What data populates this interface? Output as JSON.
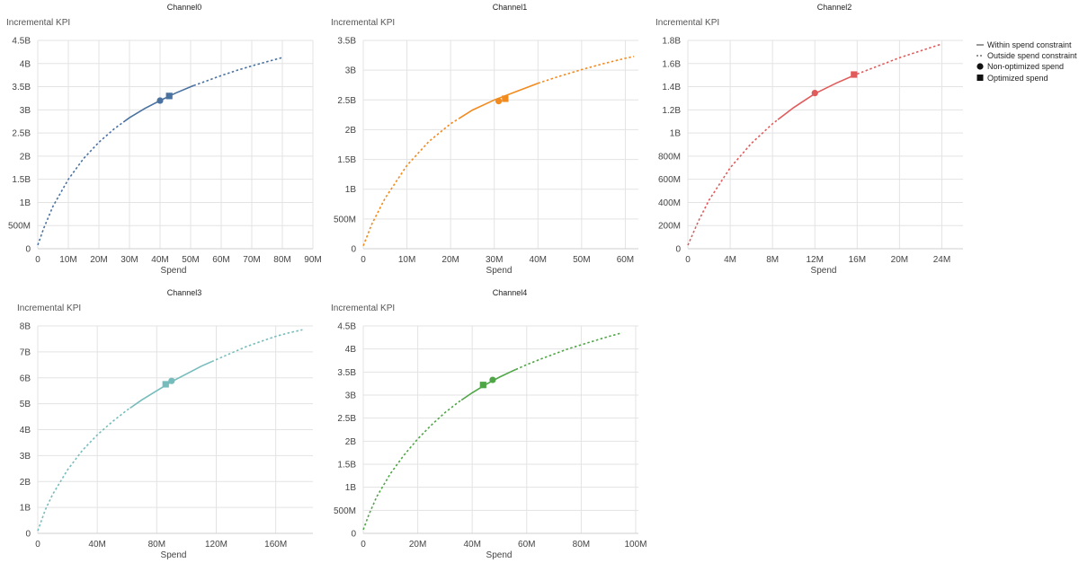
{
  "legend": {
    "within": "Within spend constraint",
    "outside": "Outside spend constraint",
    "non_optimized": "Non-optimized spend",
    "optimized": "Optimized spend"
  },
  "chart_data": [
    {
      "type": "line",
      "title": "Channel0",
      "ylabel": "Incremental KPI",
      "xlabel": "Spend",
      "color": "#4a72a0",
      "xlim": [
        0,
        90000000
      ],
      "ylim": [
        0,
        4500000000
      ],
      "xticks": [
        0,
        10000000,
        20000000,
        30000000,
        40000000,
        50000000,
        60000000,
        70000000,
        80000000,
        90000000
      ],
      "xtick_labels": [
        "0",
        "10M",
        "20M",
        "30M",
        "40M",
        "50M",
        "60M",
        "70M",
        "80M",
        "90M"
      ],
      "yticks": [
        0,
        500000000,
        1000000000,
        1500000000,
        2000000000,
        2500000000,
        3000000000,
        3500000000,
        4000000000,
        4500000000
      ],
      "ytick_labels": [
        "0",
        "500M",
        "1B",
        "1.5B",
        "2B",
        "2.5B",
        "3B",
        "3.5B",
        "4B",
        "4.5B"
      ],
      "curve": {
        "x": [
          0,
          2000000,
          5000000,
          10000000,
          15000000,
          20000000,
          25000000,
          30000000,
          35000000,
          40000000,
          45000000,
          50000000,
          55000000,
          60000000,
          65000000,
          70000000,
          75000000,
          80000000
        ],
        "y": [
          80000000,
          450000000,
          920000000,
          1500000000,
          1950000000,
          2300000000,
          2590000000,
          2830000000,
          3030000000,
          3200000000,
          3360000000,
          3500000000,
          3620000000,
          3740000000,
          3850000000,
          3950000000,
          4040000000,
          4130000000
        ]
      },
      "within_range": [
        28000000,
        51000000
      ],
      "non_optimized": {
        "x": 40000000,
        "y": 3200000000
      },
      "optimized": {
        "x": 43000000,
        "y": 3300000000
      }
    },
    {
      "type": "line",
      "title": "Channel1",
      "ylabel": "Incremental KPI",
      "xlabel": "Spend",
      "color": "#f28a1e",
      "xlim": [
        0,
        63000000
      ],
      "ylim": [
        0,
        3500000000
      ],
      "xticks": [
        0,
        10000000,
        20000000,
        30000000,
        40000000,
        50000000,
        60000000
      ],
      "xtick_labels": [
        "0",
        "10M",
        "20M",
        "30M",
        "40M",
        "50M",
        "60M"
      ],
      "yticks": [
        0,
        500000000,
        1000000000,
        1500000000,
        2000000000,
        2500000000,
        3000000000,
        3500000000
      ],
      "ytick_labels": [
        "0",
        "500M",
        "1B",
        "1.5B",
        "2B",
        "2.5B",
        "3B",
        "3.5B"
      ],
      "curve": {
        "x": [
          0,
          2000000,
          5000000,
          10000000,
          15000000,
          20000000,
          25000000,
          30000000,
          35000000,
          40000000,
          45000000,
          50000000,
          55000000,
          60000000,
          62000000
        ],
        "y": [
          50000000,
          420000000,
          850000000,
          1400000000,
          1800000000,
          2100000000,
          2330000000,
          2500000000,
          2640000000,
          2780000000,
          2900000000,
          3010000000,
          3110000000,
          3200000000,
          3230000000
        ]
      },
      "within_range": [
        22000000,
        40000000
      ],
      "non_optimized": {
        "x": 31000000,
        "y": 2480000000
      },
      "optimized": {
        "x": 32500000,
        "y": 2520000000
      }
    },
    {
      "type": "line",
      "title": "Channel2",
      "ylabel": "Incremental KPI",
      "xlabel": "Spend",
      "color": "#e05c5c",
      "xlim": [
        0,
        26000000
      ],
      "ylim": [
        0,
        1800000000
      ],
      "xticks": [
        0,
        4000000,
        8000000,
        12000000,
        16000000,
        20000000,
        24000000
      ],
      "xtick_labels": [
        "0",
        "4M",
        "8M",
        "12M",
        "16M",
        "20M",
        "24M"
      ],
      "yticks": [
        0,
        200000000,
        400000000,
        600000000,
        800000000,
        1000000000,
        1200000000,
        1400000000,
        1600000000,
        1800000000
      ],
      "ytick_labels": [
        "0",
        "200M",
        "400M",
        "600M",
        "800M",
        "1B",
        "1.2B",
        "1.4B",
        "1.6B",
        "1.8B"
      ],
      "curve": {
        "x": [
          0,
          1000000,
          2000000,
          4000000,
          6000000,
          8000000,
          10000000,
          12000000,
          14000000,
          16000000,
          18000000,
          20000000,
          22000000,
          24000000
        ],
        "y": [
          30000000,
          240000000,
          420000000,
          700000000,
          910000000,
          1080000000,
          1220000000,
          1340000000,
          1430000000,
          1510000000,
          1580000000,
          1650000000,
          1710000000,
          1770000000
        ]
      },
      "within_range": [
        8500000,
        16000000
      ],
      "non_optimized": {
        "x": 12000000,
        "y": 1345000000
      },
      "optimized": {
        "x": 15700000,
        "y": 1505000000
      }
    },
    {
      "type": "line",
      "title": "Channel3",
      "ylabel": "Incremental KPI",
      "xlabel": "Spend",
      "color": "#76bcbc",
      "xlim": [
        0,
        185000000
      ],
      "ylim": [
        0,
        8000000000
      ],
      "xticks": [
        0,
        40000000,
        80000000,
        120000000,
        160000000
      ],
      "xtick_labels": [
        "0",
        "40M",
        "80M",
        "120M",
        "160M"
      ],
      "yticks": [
        0,
        1000000000,
        2000000000,
        3000000000,
        4000000000,
        5000000000,
        6000000000,
        7000000000,
        8000000000
      ],
      "ytick_labels": [
        "0",
        "1B",
        "2B",
        "3B",
        "4B",
        "5B",
        "6B",
        "7B",
        "8B"
      ],
      "curve": {
        "x": [
          0,
          5000000,
          10000000,
          20000000,
          30000000,
          40000000,
          50000000,
          60000000,
          70000000,
          80000000,
          90000000,
          100000000,
          110000000,
          120000000,
          130000000,
          140000000,
          150000000,
          160000000,
          170000000,
          178000000
        ],
        "y": [
          100000000,
          900000000,
          1500000000,
          2450000000,
          3200000000,
          3800000000,
          4300000000,
          4750000000,
          5150000000,
          5500000000,
          5850000000,
          6150000000,
          6450000000,
          6700000000,
          6950000000,
          7200000000,
          7400000000,
          7600000000,
          7750000000,
          7850000000
        ]
      },
      "within_range": [
        62000000,
        117000000
      ],
      "non_optimized": {
        "x": 90000000,
        "y": 5880000000
      },
      "optimized": {
        "x": 86000000,
        "y": 5750000000
      }
    },
    {
      "type": "line",
      "title": "Channel4",
      "ylabel": "Incremental KPI",
      "xlabel": "Spend",
      "color": "#4fa647",
      "xlim": [
        0,
        101000000
      ],
      "ylim": [
        0,
        4500000000
      ],
      "xticks": [
        0,
        20000000,
        40000000,
        60000000,
        80000000,
        100000000
      ],
      "xtick_labels": [
        "0",
        "20M",
        "40M",
        "60M",
        "80M",
        "100M"
      ],
      "yticks": [
        0,
        500000000,
        1000000000,
        1500000000,
        2000000000,
        2500000000,
        3000000000,
        3500000000,
        4000000000,
        4500000000
      ],
      "ytick_labels": [
        "0",
        "500M",
        "1B",
        "1.5B",
        "2B",
        "2.5B",
        "3B",
        "3.5B",
        "4B",
        "4.5B"
      ],
      "curve": {
        "x": [
          0,
          2000000,
          5000000,
          10000000,
          15000000,
          20000000,
          25000000,
          30000000,
          35000000,
          40000000,
          45000000,
          50000000,
          55000000,
          60000000,
          65000000,
          70000000,
          75000000,
          80000000,
          85000000,
          90000000,
          95000000
        ],
        "y": [
          80000000,
          400000000,
          800000000,
          1300000000,
          1700000000,
          2050000000,
          2350000000,
          2620000000,
          2850000000,
          3050000000,
          3230000000,
          3390000000,
          3530000000,
          3660000000,
          3780000000,
          3890000000,
          4000000000,
          4090000000,
          4180000000,
          4270000000,
          4350000000
        ]
      },
      "within_range": [
        36000000,
        56000000
      ],
      "non_optimized": {
        "x": 47500000,
        "y": 3330000000
      },
      "optimized": {
        "x": 44000000,
        "y": 3220000000
      }
    }
  ]
}
